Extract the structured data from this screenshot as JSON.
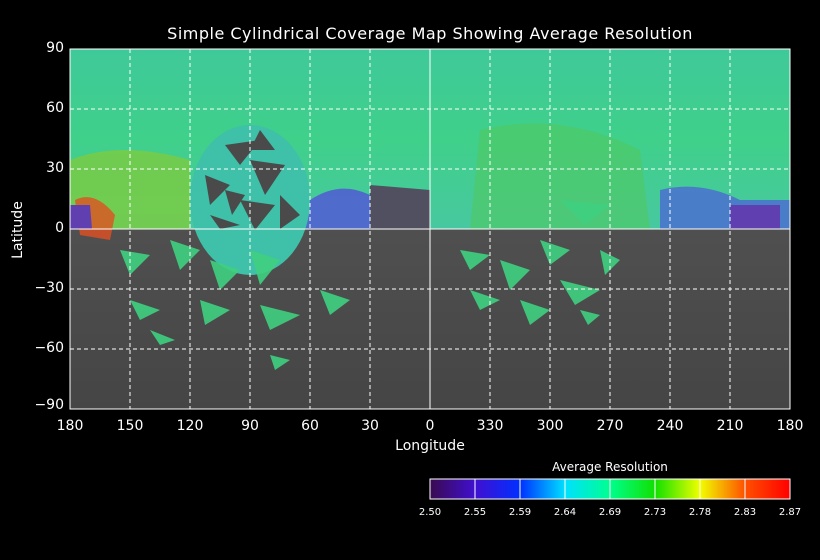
{
  "chart_data": {
    "type": "heatmap",
    "title": "Simple Cylindrical Coverage Map Showing Average Resolution",
    "xlabel": "Longitude",
    "ylabel": "Latitude",
    "x_ticks": [
      "180",
      "150",
      "120",
      "90",
      "60",
      "30",
      "0",
      "330",
      "300",
      "270",
      "240",
      "210",
      "180"
    ],
    "y_ticks": [
      "90",
      "60",
      "30",
      "0",
      "−30",
      "−60",
      "−90"
    ],
    "xlim": [
      180,
      -180
    ],
    "ylim": [
      -90,
      90
    ],
    "grid": true,
    "projection": "simple cylindrical",
    "colorbar": {
      "title": "Average Resolution",
      "ticks": [
        "2.50",
        "2.55",
        "2.59",
        "2.64",
        "2.69",
        "2.73",
        "2.78",
        "2.83",
        "2.87"
      ],
      "range": [
        2.5,
        2.87
      ],
      "colors": [
        "#3a0a50",
        "#0000ff",
        "#00b0ff",
        "#00ffc0",
        "#00ff00",
        "#c0ff00",
        "#ffa000",
        "#ff0000"
      ]
    },
    "coverage_summary": "Northern hemisphere covered mostly at ~2.66-2.70 resolution; southern hemisphere largely uncovered (grayscale basemap)"
  }
}
